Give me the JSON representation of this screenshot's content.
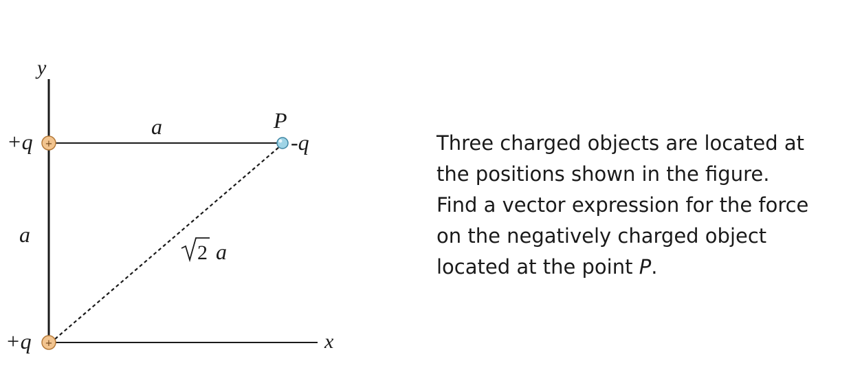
{
  "diagram": {
    "axis_y_label": "y",
    "axis_x_label": "x",
    "charge_top_left_label": "+q",
    "charge_bottom_left_label": "+q",
    "charge_p_label": "-q",
    "point_label": "P",
    "side_top_label": "a",
    "side_left_label": "a",
    "diagonal_label_root": "2",
    "diagonal_label_var": "a",
    "positive_sign": "+",
    "colors": {
      "positive_charge_fill": "#f2c48f",
      "positive_charge_stroke": "#b57a3a",
      "negative_charge_fill": "#9fd4e6",
      "negative_charge_stroke": "#3f86a3",
      "lines": "#1a1a1a"
    }
  },
  "problem": {
    "line1": "Three charged objects are located at",
    "line2": "the positions shown in the figure.",
    "line3": "Find a vector expression for the force",
    "line4": "on the negatively charged object",
    "line5_prefix": "located at the point ",
    "line5_point": "P",
    "line5_suffix": "."
  }
}
